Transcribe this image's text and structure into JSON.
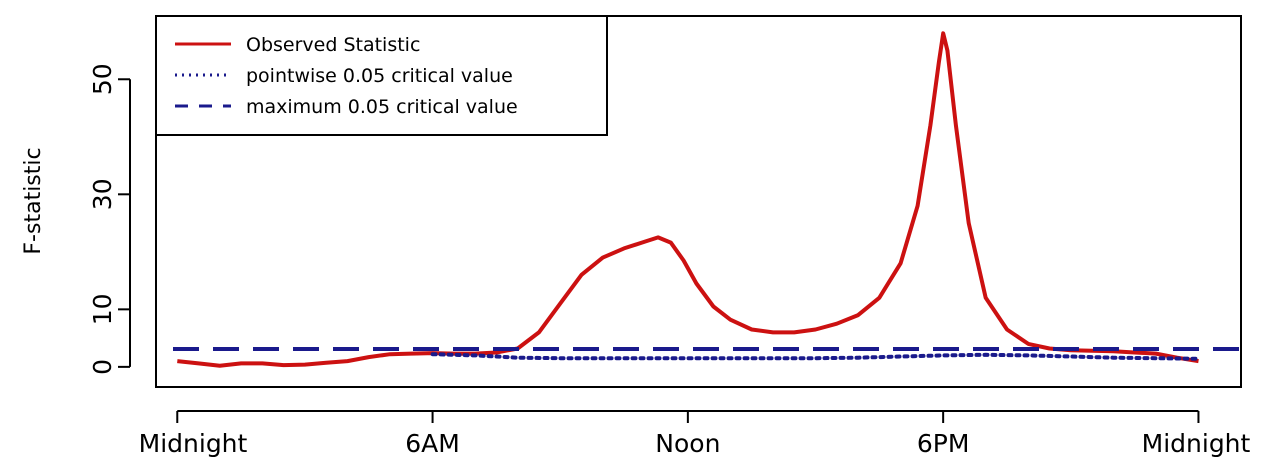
{
  "chart_data": {
    "type": "line",
    "title": "",
    "xlabel": "",
    "ylabel": "F-statistic",
    "x_tick_labels": [
      "Midnight",
      "6AM",
      "Noon",
      "6PM",
      "Midnight"
    ],
    "x_tick_values": [
      0,
      6,
      12,
      18,
      24
    ],
    "xlim": [
      -0.5,
      25
    ],
    "y_tick_labels": [
      "0",
      "10",
      "30",
      "50"
    ],
    "y_tick_values": [
      0,
      10,
      30,
      50
    ],
    "ylim": [
      -3.5,
      61
    ],
    "legend_position": "top-left",
    "series": [
      {
        "name": "Observed Statistic",
        "color": "#cc1111",
        "style": "solid",
        "x": [
          0,
          0.5,
          1,
          1.5,
          2,
          2.5,
          3,
          3.5,
          4,
          4.5,
          5,
          5.5,
          6,
          6.5,
          7,
          7.5,
          8,
          8.5,
          9,
          9.5,
          10,
          10.5,
          11,
          11.3,
          11.6,
          11.9,
          12.2,
          12.6,
          13,
          13.5,
          14,
          14.5,
          15,
          15.5,
          16,
          16.5,
          17,
          17.4,
          17.7,
          17.9,
          18,
          18.1,
          18.3,
          18.6,
          19,
          19.5,
          20,
          20.5,
          21,
          21.5,
          22,
          22.5,
          23,
          23.5,
          24
        ],
        "y": [
          1,
          0.6,
          0.2,
          0.6,
          0.6,
          0.3,
          0.4,
          0.7,
          1,
          1.7,
          2.2,
          2.3,
          2.4,
          2.3,
          2.3,
          2.5,
          3.2,
          6,
          11,
          16,
          19,
          20.6,
          21.8,
          22.5,
          21.6,
          18.5,
          14.5,
          10.5,
          8.2,
          6.5,
          6,
          6,
          6.5,
          7.5,
          9,
          12,
          18,
          28,
          42,
          53,
          58,
          55,
          42,
          25,
          12,
          6.5,
          4,
          3.2,
          2.9,
          2.8,
          2.7,
          2.5,
          2.3,
          1.6,
          1
        ]
      },
      {
        "name": "pointwise 0.05 critical value",
        "color": "#1a1a8c",
        "style": "dotted",
        "x": [
          6,
          6.5,
          7,
          7.5,
          8,
          9,
          10,
          11,
          12,
          13,
          14,
          15,
          16,
          17,
          18,
          19,
          20,
          21,
          22,
          23,
          24
        ],
        "y": [
          2.2,
          2.1,
          2.0,
          1.8,
          1.6,
          1.5,
          1.5,
          1.5,
          1.5,
          1.5,
          1.5,
          1.5,
          1.6,
          1.8,
          2.0,
          2.1,
          2.0,
          1.8,
          1.6,
          1.5,
          1.4
        ]
      },
      {
        "name": "maximum 0.05 critical value",
        "color": "#1a1a8c",
        "style": "dashed",
        "x": [
          -0.1,
          25
        ],
        "y": [
          3.1,
          3.1
        ]
      }
    ]
  }
}
